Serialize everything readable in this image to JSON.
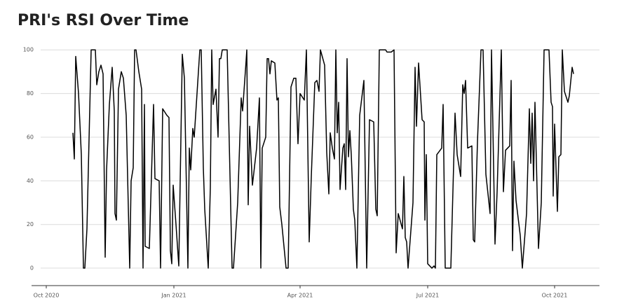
{
  "chart_data": {
    "type": "line",
    "title": "PRI's RSI Over Time",
    "color": "#000000",
    "grid": true,
    "x": [
      19,
      20,
      21,
      23,
      25,
      26.5,
      27.5,
      29,
      32,
      35,
      36,
      37.5,
      39,
      40.5,
      42,
      43,
      45,
      47,
      48.5,
      49,
      50,
      51.5,
      53.5,
      55,
      57,
      59.5,
      60.5,
      62,
      63,
      64,
      66,
      68,
      69,
      70,
      70.5,
      73.5,
      76.5,
      77.5,
      80.5,
      81.5,
      83,
      86,
      87.5,
      88.5,
      89.5,
      90.5,
      92.5,
      94.5,
      97,
      98.5,
      101,
      102,
      103,
      104.5,
      105.5,
      109.5,
      110.5,
      112,
      113,
      115.5,
      117,
      118,
      119,
      121,
      122.5,
      123.5,
      124.5,
      125.5,
      129,
      132.5,
      133.5,
      136.5,
      139,
      140,
      142.5,
      143,
      144,
      145,
      147,
      150,
      152,
      153,
      154,
      156.5,
      157.5,
      158.5,
      159.5,
      160.5,
      163,
      164.5,
      165.5,
      166.5,
      168,
      171,
      172.5,
      174.5,
      176.5,
      178,
      179.5,
      181,
      184,
      185.5,
      187.5,
      189,
      191.5,
      193,
      194.5,
      195.5,
      198.5,
      200,
      201.5,
      202.5,
      204,
      205.5,
      206.5,
      207.5,
      208.5,
      209.5,
      211.5,
      212.5,
      213.5,
      214.5,
      215.5,
      216.5,
      217.5,
      219,
      220,
      221.5,
      223.5,
      226.5,
      228.5,
      230.5,
      233.5,
      235,
      236,
      237.5,
      242,
      243,
      246,
      248,
      249.5,
      251,
      254,
      255,
      256,
      257,
      258,
      261.5,
      263,
      264,
      265.5,
      268,
      269.5,
      270,
      271,
      272,
      275,
      276.5,
      277.5,
      278.5,
      282,
      283,
      284.5,
      288.5,
      291.5,
      293,
      295.5,
      297,
      298,
      299,
      300.5,
      303.5,
      304.5,
      305.5,
      307.5,
      310,
      311.5,
      313.5,
      316.5,
      317.5,
      320,
      321.5,
      324.5,
      326,
      327.5,
      330.5,
      331.5,
      332.5,
      333.5,
      335,
      338,
      339.5,
      342.5,
      344.5,
      345.5,
      346.5,
      347.5,
      348.5,
      351,
      353,
      355,
      358.5,
      360,
      361,
      361.5,
      362.5,
      364.5,
      365.5,
      367,
      368,
      369.5,
      372,
      373,
      375,
      376
    ],
    "values": [
      62,
      50,
      97,
      80,
      52,
      0,
      0,
      18,
      100,
      100,
      84,
      90,
      93,
      89,
      5,
      45,
      75,
      92,
      72,
      25,
      22,
      82,
      90,
      87,
      70,
      0,
      40,
      46,
      100,
      100,
      90,
      82,
      0,
      75,
      10,
      9,
      75,
      41,
      40,
      0,
      73,
      70,
      69,
      8,
      2,
      38,
      20,
      1,
      98,
      87,
      0,
      55,
      45,
      64,
      60,
      100,
      100,
      46,
      27,
      0,
      37,
      100,
      75,
      82,
      60,
      96,
      96,
      100,
      100,
      0,
      0,
      30,
      78,
      72,
      95,
      100,
      29,
      65,
      38,
      55,
      78,
      0,
      55,
      60,
      96,
      96,
      89,
      95,
      94,
      77,
      78,
      28,
      20,
      0,
      0,
      83,
      87,
      87,
      57,
      80,
      77,
      100,
      12,
      42,
      85,
      86,
      81,
      100,
      93,
      53,
      34,
      62,
      55,
      50,
      100,
      62,
      76,
      36,
      55,
      57,
      36,
      96,
      51,
      63,
      52,
      27,
      22,
      0,
      70,
      86,
      0,
      68,
      67,
      27,
      24,
      100,
      100,
      99,
      99,
      100,
      7,
      25,
      18,
      42,
      14,
      12,
      0,
      30,
      92,
      65,
      94,
      68,
      67,
      22,
      52,
      2,
      0,
      1,
      0,
      52,
      55,
      75,
      0,
      0,
      71,
      52,
      42,
      84,
      80,
      86,
      55,
      56,
      13,
      12,
      58,
      100,
      100,
      43,
      25,
      100,
      11,
      35,
      100,
      35,
      54,
      56,
      86,
      8,
      49,
      31,
      15,
      0,
      25,
      73,
      48,
      71,
      40,
      76,
      9,
      30,
      100,
      100,
      76,
      74,
      33,
      66,
      26,
      51,
      52,
      100,
      81,
      76,
      79,
      92,
      89
    ],
    "xlim": [
      -10.5,
      394.5
    ],
    "xticks": [
      {
        "value": 0,
        "label": "Oct 2020"
      },
      {
        "value": 91,
        "label": "Jan 2021"
      },
      {
        "value": 181,
        "label": "Apr 2021"
      },
      {
        "value": 272,
        "label": "Jul 2021"
      },
      {
        "value": 362.5,
        "label": "Oct 2021"
      }
    ],
    "ylim": [
      -8,
      102
    ],
    "yticks": [
      0,
      20,
      40,
      60,
      80,
      100
    ]
  }
}
